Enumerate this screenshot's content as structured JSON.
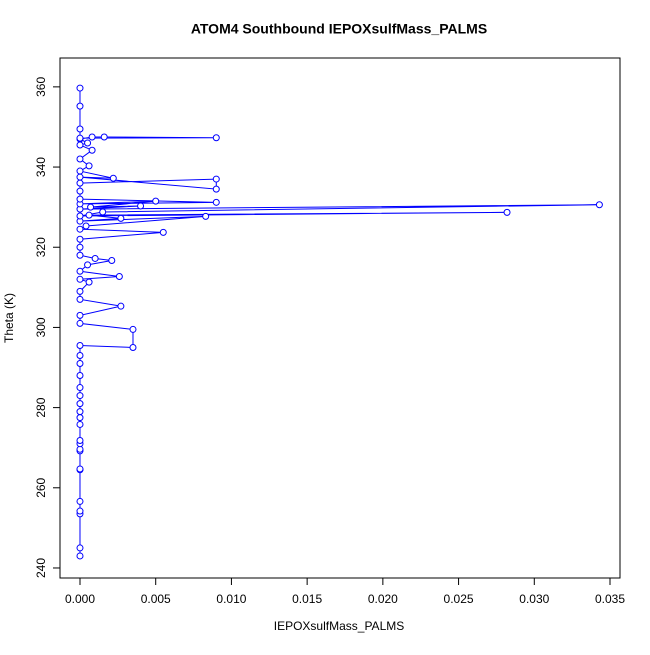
{
  "chart_data": {
    "type": "line",
    "title": "ATOM4 Southbound IEPOXsulfMass_PALMS",
    "x_label": "IEPOXsulfMass_PALMS",
    "y_label": "Theta (K)",
    "color": "#0000ff",
    "markers": "open-circle",
    "x": [
      0,
      0,
      0,
      0,
      0,
      0,
      0,
      0,
      0,
      0,
      0,
      0,
      0,
      0,
      0,
      0,
      0,
      0,
      0,
      0,
      0,
      0.0035,
      0.0035,
      0,
      0,
      0.0027,
      0,
      0,
      0.0006,
      0,
      0.0026,
      0,
      0.0005,
      0.0021,
      0.001,
      0,
      0,
      0,
      0.0055,
      0,
      0.0004,
      0.0083,
      0,
      0.0027,
      0.0006,
      0.0282,
      0,
      0.0015,
      0.0343,
      0,
      0.004,
      0.0007,
      0.005,
      0,
      0.009,
      0,
      0,
      0,
      0.009,
      0.009,
      0,
      0.0022,
      0,
      0.0006,
      0,
      0.0008,
      0,
      0.0005,
      0,
      0.0008,
      0.0016,
      0.009,
      0,
      0,
      0,
      0
    ],
    "values": [
      243,
      245,
      253.5,
      254.2,
      256.6,
      264.5,
      264.7,
      269.2,
      269.6,
      271,
      271.8,
      275.8,
      277.5,
      279,
      281,
      283,
      285,
      288,
      291,
      293,
      295.5,
      295,
      299.5,
      301,
      303,
      305.3,
      307,
      309,
      311.3,
      312,
      312.7,
      314,
      315.6,
      316.7,
      317.2,
      318,
      320,
      322,
      323.7,
      324.5,
      325.3,
      327.7,
      326.5,
      327.2,
      328,
      328.7,
      327.8,
      328.8,
      330.6,
      329.5,
      330.3,
      330,
      331.5,
      330.8,
      331.2,
      332,
      334,
      336,
      337,
      334.5,
      337.5,
      337.2,
      339,
      340.3,
      342,
      344.2,
      345.5,
      346,
      347,
      347.5,
      347.5,
      347.3,
      347.2,
      349.5,
      355.2,
      359.7
    ],
    "xlim": [
      -0.00132,
      0.03566
    ],
    "ylim": [
      237.5,
      367.2
    ],
    "xticks": [
      {
        "value": 0,
        "label": "0.000"
      },
      {
        "value": 0.005,
        "label": "0.005"
      },
      {
        "value": 0.01,
        "label": "0.010"
      },
      {
        "value": 0.015,
        "label": "0.015"
      },
      {
        "value": 0.02,
        "label": "0.020"
      },
      {
        "value": 0.025,
        "label": "0.025"
      },
      {
        "value": 0.03,
        "label": "0.030"
      },
      {
        "value": 0.035,
        "label": "0.035"
      }
    ],
    "yticks": [
      240,
      260,
      280,
      300,
      320,
      340,
      360
    ]
  }
}
